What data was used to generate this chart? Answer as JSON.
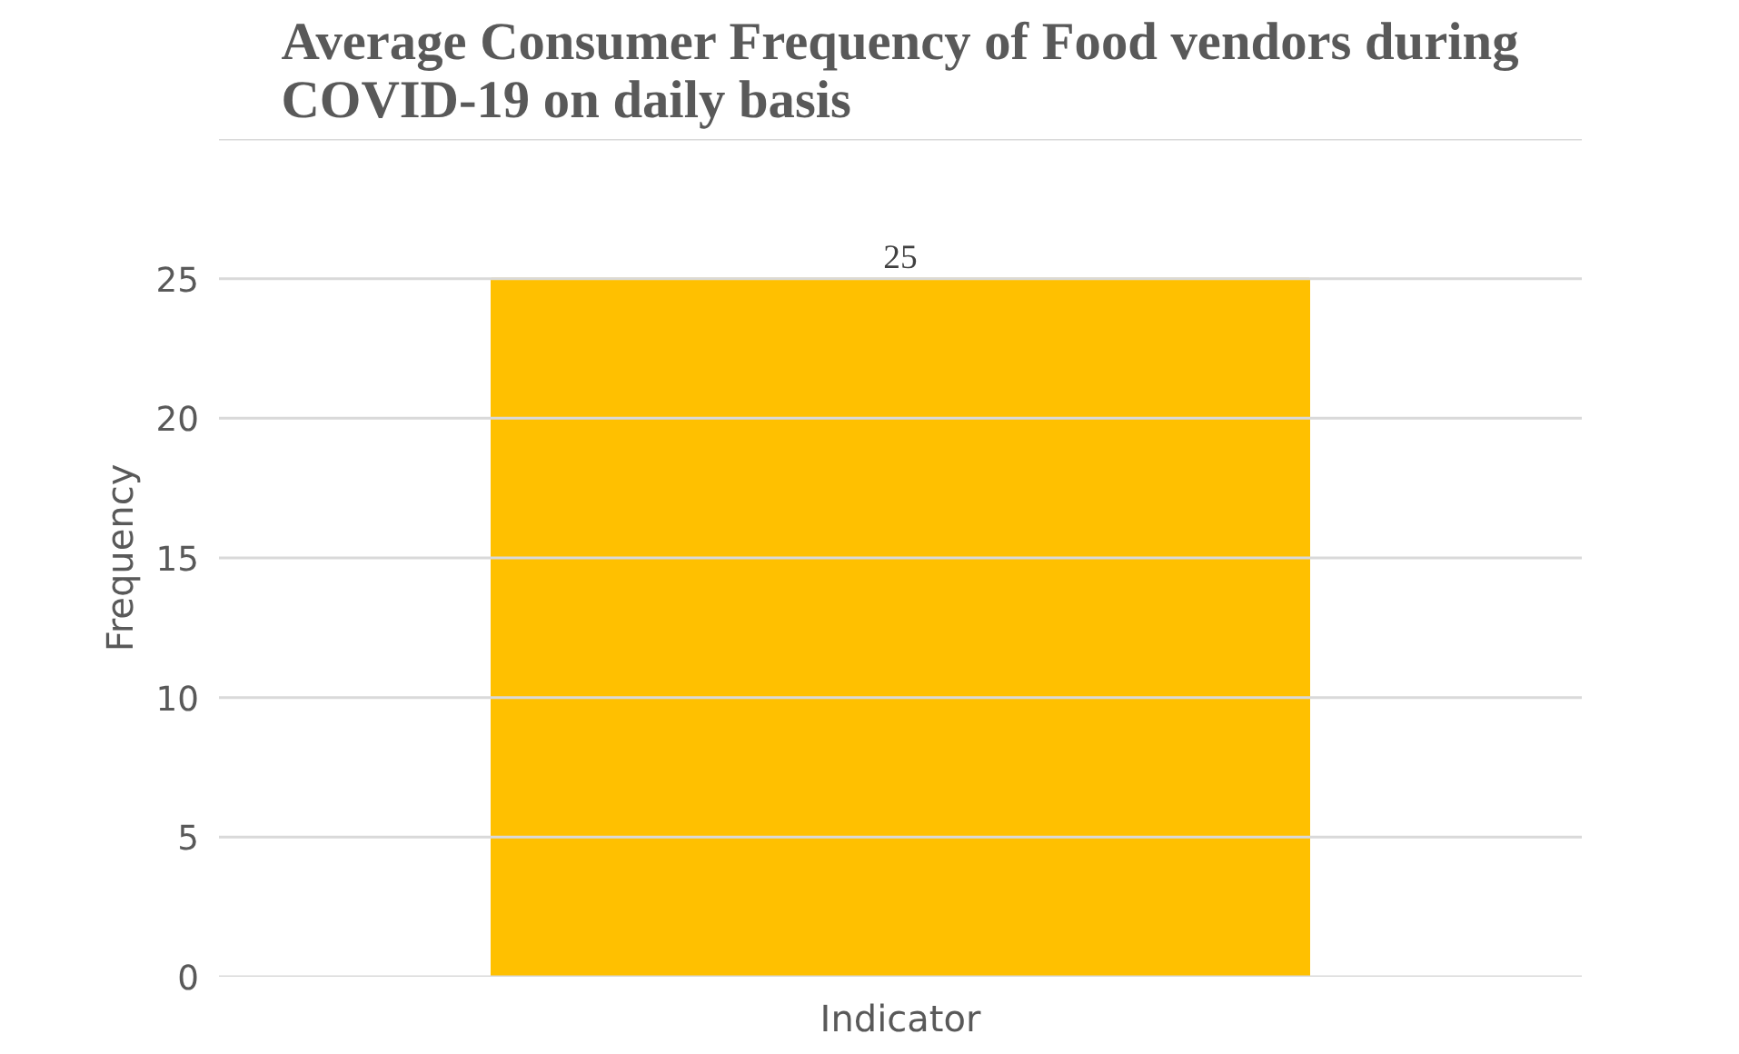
{
  "chart_data": {
    "type": "bar",
    "title": "Average Consumer Frequency of Food vendors during COVID-19 on daily basis",
    "ylabel": "Frequency",
    "categories": [
      "Indicator"
    ],
    "values": [
      25
    ],
    "color": "#ffc000",
    "ylim": [
      0,
      30
    ],
    "yticks": [
      0,
      5,
      10,
      15,
      20,
      25,
      {
        "value": 30,
        "label": null
      }
    ],
    "grid": "y",
    "data_labels": true
  }
}
